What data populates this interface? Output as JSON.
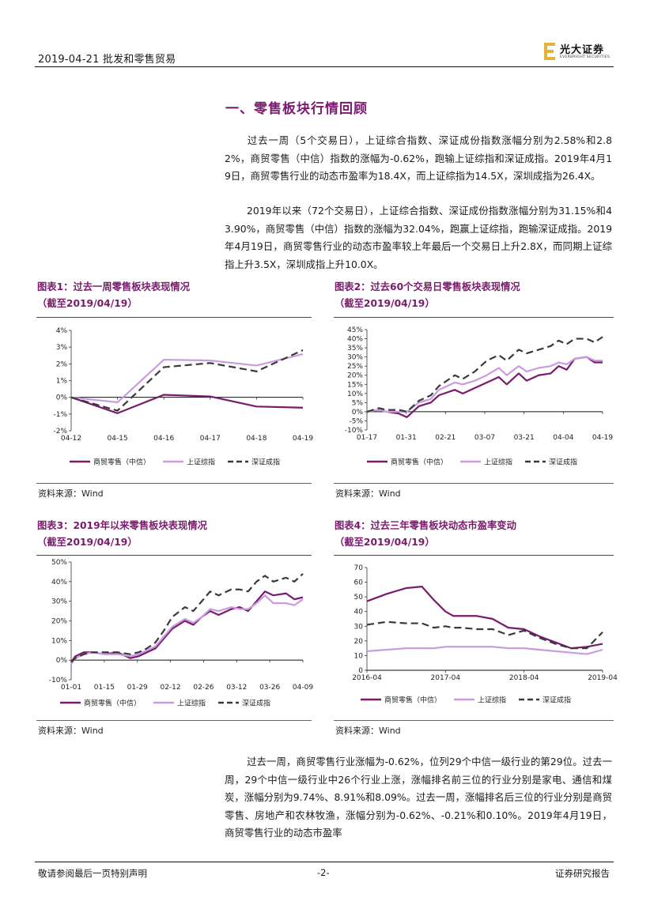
{
  "header": {
    "date_sector": "2019-04-21   批发和零售贸易",
    "logo_cn": "光大证券",
    "logo_en": "EVERBRIGHT SECURITIES"
  },
  "section_title": "一、零售板块行情回顾",
  "paragraphs": [
    "过去一周（5个交易日），上证综合指数、深证成份指数涨幅分别为2.58%和2.82%，商贸零售（中信）指数的涨幅为-0.62%，跑输上证综指和深证成指。2019年4月19日，商贸零售行业的动态市盈率为18.4X，而上证综指为14.5X，深圳成指为26.4X。",
    "2019年以来（72个交易日），上证综合指数、深证成份指数涨幅分别为31.15%和43.90%，商贸零售（中信）指数的涨幅为32.04%，跑赢上证综指，跑输深证成指。2019年4月19日，商贸零售行业的动态市盈率较上年最后一个交易日上升2.8X，而同期上证综指上升3.5X，深圳成指上升10.0X。",
    "过去一周，商贸零售行业涨幅为-0.62%，位列29个中信一级行业的第29位。过去一周，29个中信一级行业中26个行业上涨，涨幅排名前三位的行业分别是家电、通信和煤炭，涨幅分别为9.74%、8.91%和8.09%。过去一周，涨幅排名后三位的行业分别是商贸零售、房地产和农林牧渔，涨幅分别为-0.62%、-0.21%和0.10%。2019年4月19日，商贸零售行业的动态市盈率"
  ],
  "colors": {
    "retail": "#7a1a6e",
    "shanghai": "#c99be0",
    "shenzhen": "#3a3a3a",
    "accent": "#7a1a6e"
  },
  "legend": [
    "商贸零售（中信）",
    "上证综指",
    "深证成指"
  ],
  "source": "资料来源：Wind",
  "chart_data": [
    {
      "type": "line",
      "title": "图表1：过去一周零售板块表现情况",
      "subtitle": "（截至2019/04/19）",
      "xlabels": [
        "04-12",
        "04-15",
        "04-16",
        "04-17",
        "04-18",
        "04-19"
      ],
      "yticks": [
        "4%",
        "3%",
        "2%",
        "1%",
        "0%",
        "-1%",
        "-2%"
      ],
      "ylim": [
        -2,
        4
      ],
      "x": [
        0,
        1,
        2,
        3,
        4,
        5
      ],
      "series": [
        {
          "name": "商贸零售（中信）",
          "values": [
            0,
            -0.95,
            0.15,
            0.05,
            -0.55,
            -0.62
          ]
        },
        {
          "name": "上证综指",
          "values": [
            0,
            -0.3,
            2.25,
            2.2,
            1.9,
            2.58
          ]
        },
        {
          "name": "深证成指",
          "values": [
            0,
            -0.8,
            1.8,
            2.05,
            1.55,
            2.82
          ]
        }
      ]
    },
    {
      "type": "line",
      "title": "图表2：过去60个交易日零售板块表现情况",
      "subtitle": "（截至2019/04/19）",
      "xlabels": [
        "01-17",
        "01-31",
        "02-21",
        "03-07",
        "03-21",
        "04-04",
        "04-19"
      ],
      "yticks": [
        "45%",
        "40%",
        "35%",
        "30%",
        "25%",
        "20%",
        "15%",
        "10%",
        "5%",
        "0%",
        "-5%",
        "-10%"
      ],
      "ylim": [
        -10,
        45
      ],
      "x": [
        0,
        3,
        5,
        8,
        10,
        13,
        16,
        18,
        22,
        24,
        27,
        30,
        33,
        35,
        38,
        40,
        43,
        46,
        48,
        50,
        52,
        55,
        57,
        59
      ],
      "series": [
        {
          "name": "商贸零售（中信）",
          "values": [
            0,
            1,
            0,
            -1,
            -3,
            3,
            5,
            9,
            12,
            10,
            13,
            16,
            19,
            15,
            21,
            17,
            20,
            21,
            25,
            23,
            29,
            30,
            27,
            27
          ]
        },
        {
          "name": "上证综指",
          "values": [
            0,
            1,
            0,
            0,
            0,
            5,
            7,
            12,
            16,
            15,
            17,
            20,
            24,
            20,
            25,
            22,
            24,
            25,
            27,
            26,
            29,
            30,
            28,
            28
          ]
        },
        {
          "name": "深证成指",
          "values": [
            0,
            2,
            1,
            1,
            0,
            6,
            9,
            14,
            20,
            18,
            22,
            28,
            31,
            28,
            34,
            32,
            34,
            36,
            39,
            37,
            40,
            40,
            38,
            41
          ]
        }
      ]
    },
    {
      "type": "line",
      "title": "图表3：2019年以来零售板块表现情况",
      "subtitle": "（截至2019/04/19）",
      "xlabels": [
        "01-01",
        "01-15",
        "01-29",
        "02-12",
        "02-26",
        "03-12",
        "03-26",
        "04-09"
      ],
      "yticks": [
        "50%",
        "40%",
        "30%",
        "20%",
        "10%",
        "0%",
        "-10%"
      ],
      "ylim": [
        -10,
        50
      ],
      "x": [
        0,
        1,
        3,
        5,
        8,
        11,
        14,
        16,
        18,
        20,
        22,
        24,
        27,
        29,
        31,
        33,
        35,
        38,
        40,
        42,
        44,
        46,
        48,
        51,
        53,
        55
      ],
      "series": [
        {
          "name": "商贸零售（中信）",
          "values": [
            -1,
            2,
            4,
            4,
            3,
            4,
            1,
            2,
            4,
            6,
            11,
            16,
            20,
            18,
            22,
            25,
            23,
            26,
            27,
            25,
            30,
            35,
            33,
            34,
            31,
            32
          ]
        },
        {
          "name": "上证综指",
          "values": [
            -2,
            1,
            3,
            4,
            3,
            3,
            2,
            3,
            5,
            7,
            12,
            17,
            21,
            19,
            22,
            26,
            25,
            27,
            26,
            26,
            29,
            33,
            29,
            29,
            28,
            31
          ]
        },
        {
          "name": "深证成指",
          "values": [
            -1,
            1,
            3,
            4,
            4,
            4,
            3,
            4,
            6,
            9,
            15,
            22,
            27,
            25,
            30,
            35,
            33,
            36,
            36,
            35,
            40,
            43,
            40,
            42,
            40,
            44
          ]
        }
      ]
    },
    {
      "type": "line",
      "title": "图表4：过去三年零售板块动态市盈率变动",
      "subtitle": "（截至2019/04/19）",
      "xlabels": [
        "2016-04",
        "2017-04",
        "2018-04",
        "2019-04"
      ],
      "yticks": [
        "70",
        "60",
        "50",
        "40",
        "30",
        "20",
        "10",
        "0"
      ],
      "ylim": [
        0,
        70
      ],
      "x": [
        0,
        0.25,
        0.5,
        0.7,
        0.85,
        1,
        1.1,
        1.2,
        1.4,
        1.6,
        1.8,
        2,
        2.2,
        2.4,
        2.6,
        2.8,
        3
      ],
      "series": [
        {
          "name": "商贸零售（中信）",
          "values": [
            47,
            52,
            56,
            57,
            48,
            40,
            37,
            37,
            37,
            35,
            29,
            28,
            23,
            19,
            15,
            16,
            18
          ]
        },
        {
          "name": "上证综指",
          "values": [
            13,
            14,
            15,
            15,
            15,
            16,
            16,
            16,
            16,
            16,
            15,
            15,
            14,
            13,
            12,
            11,
            14
          ]
        },
        {
          "name": "深证成指",
          "values": [
            31,
            33,
            32,
            32,
            29,
            30,
            29,
            29,
            28,
            28,
            24,
            27,
            22,
            18,
            15,
            15,
            26
          ]
        }
      ]
    }
  ],
  "footer": {
    "left": "敬请参阅最后一页特别声明",
    "center": "-2-",
    "right": "证券研究报告"
  }
}
